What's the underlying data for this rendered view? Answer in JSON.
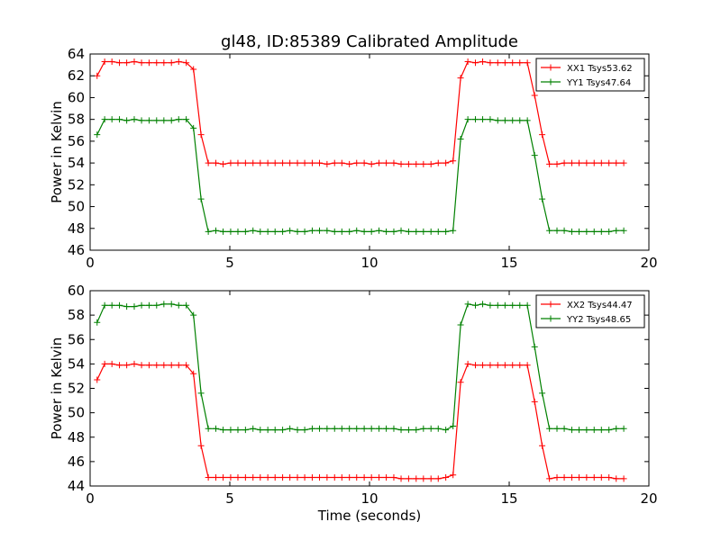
{
  "title": "gl48, ID:85389 Calibrated Amplitude",
  "xlabel": "Time (seconds)",
  "colors": {
    "red": "#ff0000",
    "green": "#008000"
  },
  "chart_data": [
    {
      "type": "line",
      "ylabel": "Power in Kelvin",
      "xlim": [
        0,
        20
      ],
      "ylim": [
        46,
        64
      ],
      "x_ticks": [
        0,
        5,
        10,
        15,
        20
      ],
      "y_ticks": [
        46,
        48,
        50,
        52,
        54,
        56,
        58,
        60,
        62,
        64
      ],
      "grid": false,
      "legend_position": "top-right",
      "x": [
        0.25,
        0.52,
        0.78,
        1.05,
        1.31,
        1.58,
        1.84,
        2.11,
        2.38,
        2.64,
        2.91,
        3.17,
        3.44,
        3.7,
        3.97,
        4.23,
        4.5,
        4.76,
        5.03,
        5.29,
        5.56,
        5.83,
        6.09,
        6.36,
        6.62,
        6.89,
        7.15,
        7.42,
        7.68,
        7.95,
        8.21,
        8.48,
        8.75,
        9.01,
        9.28,
        9.54,
        9.81,
        10.07,
        10.34,
        10.6,
        10.87,
        11.13,
        11.4,
        11.67,
        11.93,
        12.2,
        12.46,
        12.73,
        12.99,
        13.26,
        13.52,
        13.79,
        14.05,
        14.32,
        14.59,
        14.85,
        15.12,
        15.38,
        15.65,
        15.91,
        16.18,
        16.44,
        16.71,
        16.97,
        17.24,
        17.5,
        17.77,
        18.04,
        18.3,
        18.57,
        18.83,
        19.1
      ],
      "series": [
        {
          "name": "XX1 Tsys53.62",
          "color": "#ff0000",
          "values": [
            62.0,
            63.3,
            63.3,
            63.2,
            63.2,
            63.3,
            63.2,
            63.2,
            63.2,
            63.2,
            63.2,
            63.3,
            63.2,
            62.6,
            56.6,
            54.0,
            54.0,
            53.9,
            54.0,
            54.0,
            54.0,
            54.0,
            54.0,
            54.0,
            54.0,
            54.0,
            54.0,
            54.0,
            54.0,
            54.0,
            54.0,
            53.9,
            54.0,
            54.0,
            53.9,
            54.0,
            54.0,
            53.9,
            54.0,
            54.0,
            54.0,
            53.9,
            53.9,
            53.9,
            53.9,
            53.9,
            54.0,
            54.0,
            54.2,
            61.8,
            63.3,
            63.2,
            63.3,
            63.2,
            63.2,
            63.2,
            63.2,
            63.2,
            63.2,
            60.2,
            56.6,
            53.9,
            53.9,
            54.0,
            54.0,
            54.0,
            54.0,
            54.0,
            54.0,
            54.0,
            54.0,
            54.0
          ]
        },
        {
          "name": "YY1 Tsys47.64",
          "color": "#008000",
          "values": [
            56.6,
            58.0,
            58.0,
            58.0,
            57.9,
            58.0,
            57.9,
            57.9,
            57.9,
            57.9,
            57.9,
            58.0,
            58.0,
            57.2,
            50.7,
            47.7,
            47.8,
            47.7,
            47.7,
            47.7,
            47.7,
            47.8,
            47.7,
            47.7,
            47.7,
            47.7,
            47.8,
            47.7,
            47.7,
            47.8,
            47.8,
            47.8,
            47.7,
            47.7,
            47.7,
            47.8,
            47.7,
            47.7,
            47.8,
            47.7,
            47.7,
            47.8,
            47.7,
            47.7,
            47.7,
            47.7,
            47.7,
            47.7,
            47.8,
            56.2,
            58.0,
            58.0,
            58.0,
            58.0,
            57.9,
            57.9,
            57.9,
            57.9,
            57.9,
            54.7,
            50.7,
            47.8,
            47.8,
            47.8,
            47.7,
            47.7,
            47.7,
            47.7,
            47.7,
            47.7,
            47.8,
            47.8
          ]
        }
      ]
    },
    {
      "type": "line",
      "ylabel": "Power in Kelvin",
      "xlabel": "Time (seconds)",
      "xlim": [
        0,
        20
      ],
      "ylim": [
        44,
        60
      ],
      "x_ticks": [
        0,
        5,
        10,
        15,
        20
      ],
      "y_ticks": [
        44,
        46,
        48,
        50,
        52,
        54,
        56,
        58,
        60
      ],
      "grid": false,
      "legend_position": "top-right",
      "x": [
        0.25,
        0.52,
        0.78,
        1.05,
        1.31,
        1.58,
        1.84,
        2.11,
        2.38,
        2.64,
        2.91,
        3.17,
        3.44,
        3.7,
        3.97,
        4.23,
        4.5,
        4.76,
        5.03,
        5.29,
        5.56,
        5.83,
        6.09,
        6.36,
        6.62,
        6.89,
        7.15,
        7.42,
        7.68,
        7.95,
        8.21,
        8.48,
        8.75,
        9.01,
        9.28,
        9.54,
        9.81,
        10.07,
        10.34,
        10.6,
        10.87,
        11.13,
        11.4,
        11.67,
        11.93,
        12.2,
        12.46,
        12.73,
        12.99,
        13.26,
        13.52,
        13.79,
        14.05,
        14.32,
        14.59,
        14.85,
        15.12,
        15.38,
        15.65,
        15.91,
        16.18,
        16.44,
        16.71,
        16.97,
        17.24,
        17.5,
        17.77,
        18.04,
        18.3,
        18.57,
        18.83,
        19.1
      ],
      "series": [
        {
          "name": "XX2 Tsys44.47",
          "color": "#ff0000",
          "values": [
            52.7,
            54.0,
            54.0,
            53.9,
            53.9,
            54.0,
            53.9,
            53.9,
            53.9,
            53.9,
            53.9,
            53.9,
            53.9,
            53.2,
            47.3,
            44.7,
            44.7,
            44.7,
            44.7,
            44.7,
            44.7,
            44.7,
            44.7,
            44.7,
            44.7,
            44.7,
            44.7,
            44.7,
            44.7,
            44.7,
            44.7,
            44.7,
            44.7,
            44.7,
            44.7,
            44.7,
            44.7,
            44.7,
            44.7,
            44.7,
            44.7,
            44.6,
            44.6,
            44.6,
            44.6,
            44.6,
            44.6,
            44.7,
            44.9,
            52.5,
            54.0,
            53.9,
            53.9,
            53.9,
            53.9,
            53.9,
            53.9,
            53.9,
            53.9,
            50.9,
            47.3,
            44.6,
            44.7,
            44.7,
            44.7,
            44.7,
            44.7,
            44.7,
            44.7,
            44.7,
            44.6,
            44.6
          ]
        },
        {
          "name": "YY2 Tsys48.65",
          "color": "#008000",
          "values": [
            57.4,
            58.8,
            58.8,
            58.8,
            58.7,
            58.7,
            58.8,
            58.8,
            58.8,
            58.9,
            58.9,
            58.8,
            58.8,
            58.0,
            51.6,
            48.7,
            48.7,
            48.6,
            48.6,
            48.6,
            48.6,
            48.7,
            48.6,
            48.6,
            48.6,
            48.6,
            48.7,
            48.6,
            48.6,
            48.7,
            48.7,
            48.7,
            48.7,
            48.7,
            48.7,
            48.7,
            48.7,
            48.7,
            48.7,
            48.7,
            48.7,
            48.6,
            48.6,
            48.6,
            48.7,
            48.7,
            48.7,
            48.6,
            48.9,
            57.2,
            58.9,
            58.8,
            58.9,
            58.8,
            58.8,
            58.8,
            58.8,
            58.8,
            58.8,
            55.4,
            51.6,
            48.7,
            48.7,
            48.7,
            48.6,
            48.6,
            48.6,
            48.6,
            48.6,
            48.6,
            48.7,
            48.7
          ]
        }
      ]
    }
  ]
}
